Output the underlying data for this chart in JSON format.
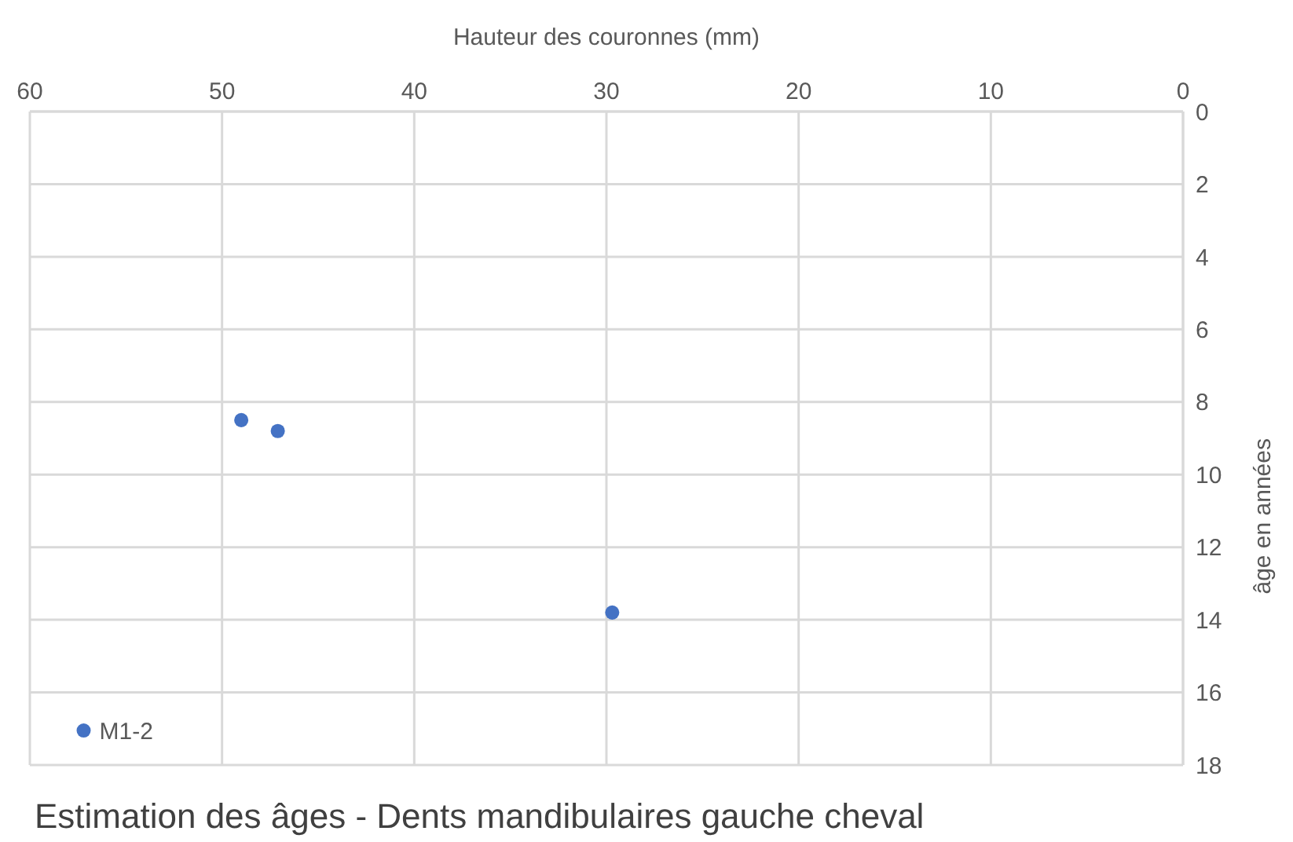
{
  "chart_data": {
    "type": "scatter",
    "title": "Estimation des âges - Dents mandibulaires gauche cheval",
    "xlabel": "Hauteur des couronnes (mm)",
    "ylabel": "âge en années",
    "x": [
      49.0,
      47.1,
      29.7,
      57.2
    ],
    "series": [
      {
        "color": "#4472c4",
        "values": [
          8.5,
          8.8,
          13.8,
          17.05
        ]
      }
    ],
    "xlim": [
      60,
      0
    ],
    "xticks": [
      60,
      50,
      40,
      30,
      20,
      10,
      0
    ],
    "ylim": [
      18,
      0
    ],
    "yticks": [
      0,
      2,
      4,
      6,
      8,
      10,
      12,
      14,
      16,
      18
    ],
    "annotations": [
      {
        "text": "M1-2",
        "x": 57.2,
        "y": 17.05
      }
    ],
    "grid": true,
    "marker": "circle",
    "legend": false
  }
}
